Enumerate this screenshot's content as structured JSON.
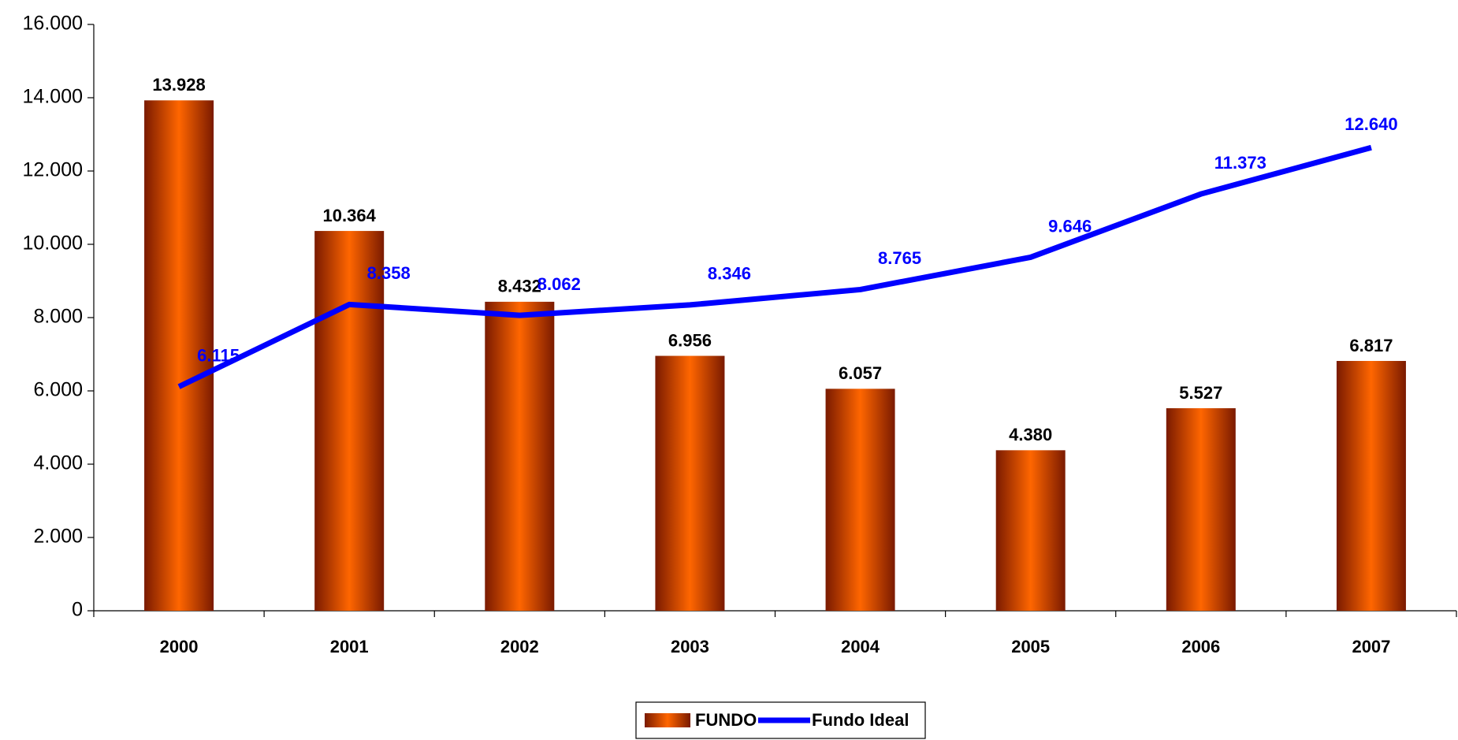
{
  "chart_data": {
    "type": "bar",
    "categories": [
      "2000",
      "2001",
      "2002",
      "2003",
      "2004",
      "2005",
      "2006",
      "2007"
    ],
    "series": [
      {
        "name": "FUNDO",
        "type": "bar",
        "color": "#ff6600",
        "values": [
          13928,
          10364,
          8432,
          6956,
          6057,
          4380,
          5527,
          6817
        ],
        "value_labels": [
          "13.928",
          "10.364",
          "8.432",
          "6.956",
          "6.057",
          "4.380",
          "5.527",
          "6.817"
        ]
      },
      {
        "name": "Fundo Ideal",
        "type": "line",
        "color": "#0000ff",
        "values": [
          6115,
          8358,
          8062,
          8346,
          8765,
          9646,
          11373,
          12640
        ],
        "value_labels": [
          "6.115",
          "8.358",
          "8.062",
          "8.346",
          "8.765",
          "9.646",
          "11.373",
          "12.640"
        ]
      }
    ],
    "ylim": [
      0,
      16000
    ],
    "yticks": [
      0,
      {
        "value": 2000,
        "label": "2.000"
      },
      {
        "value": 4000,
        "label": "4.000"
      },
      {
        "value": 6000,
        "label": "6.000"
      },
      {
        "value": 8000,
        "label": "8.000"
      },
      {
        "value": 10000,
        "label": "10.000"
      },
      {
        "value": 12000,
        "label": "12.000"
      },
      {
        "value": 14000,
        "label": "14.000"
      },
      {
        "value": 16000,
        "label": "16.000"
      }
    ],
    "grid": false,
    "legend": "bottom"
  }
}
